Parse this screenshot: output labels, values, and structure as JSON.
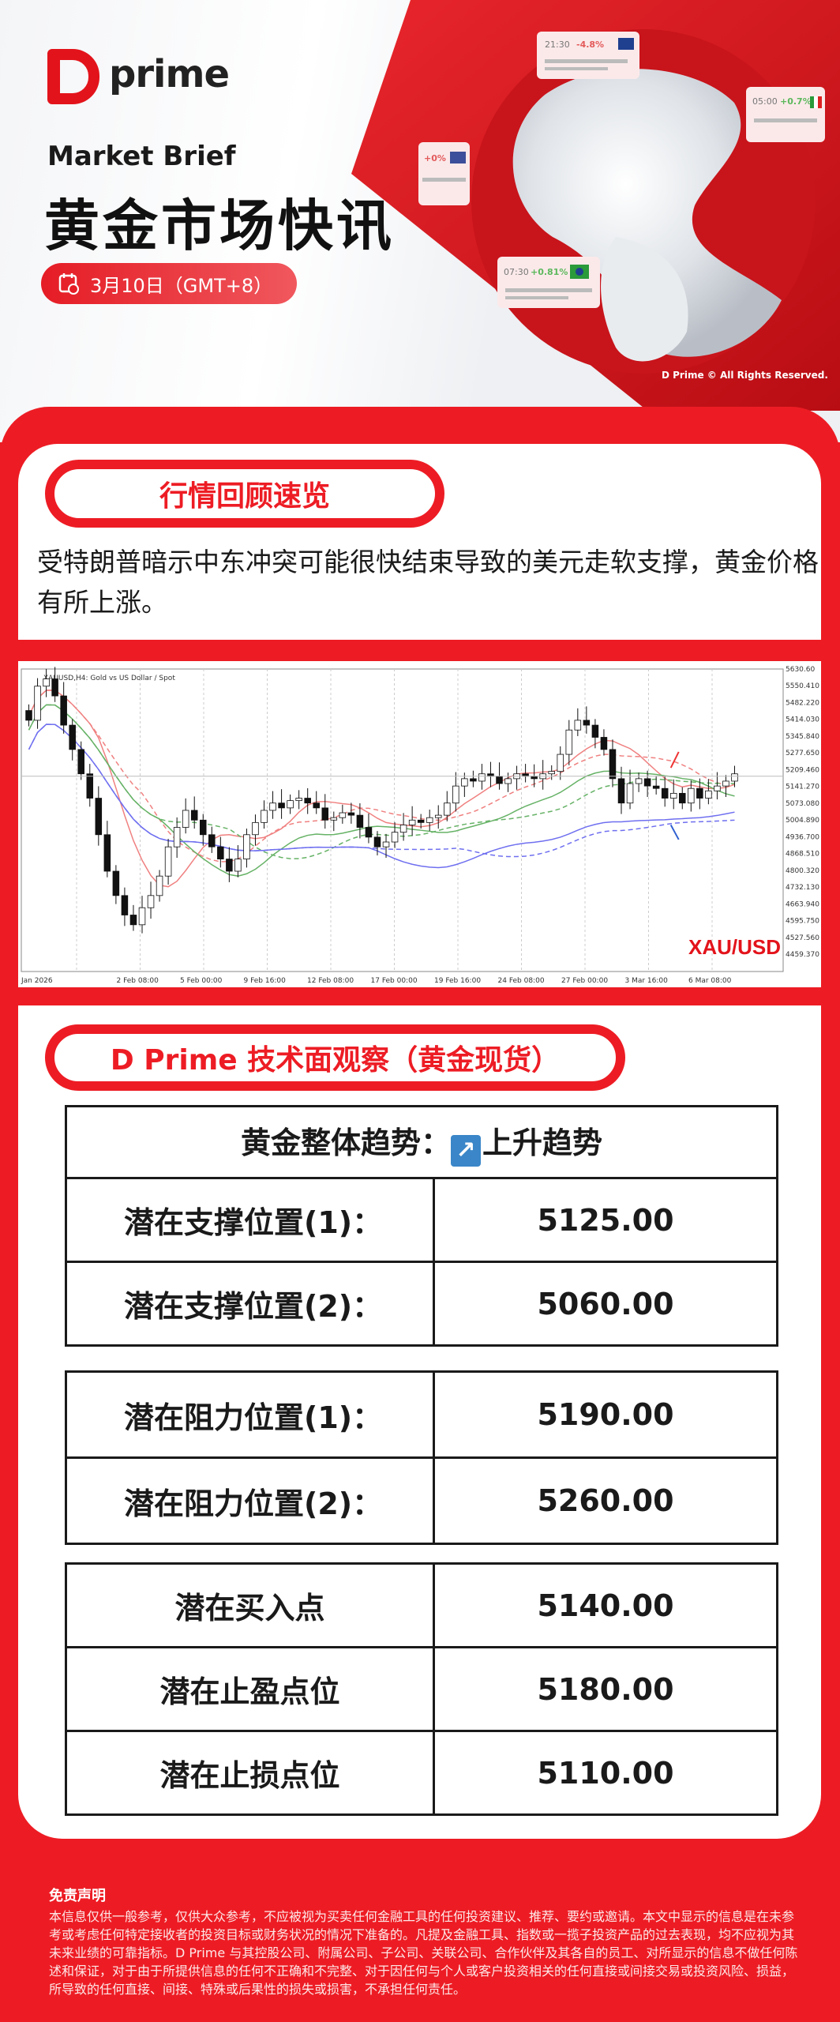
{
  "brand": {
    "logo_text": "prime",
    "copyright": "D Prime © All Rights Reserved."
  },
  "hero": {
    "subtitle": "Market Brief",
    "title": "黄金市场快讯",
    "date": "3月10日（GMT+8）",
    "date_icon": "calendar-clock-icon",
    "cards": [
      {
        "time": "21:30",
        "change": "-4.8%",
        "flag": "uk-flag"
      },
      {
        "time": "05:00",
        "change": "+0.7%",
        "flag": "italy-flag"
      },
      {
        "time": "",
        "change": "+0%",
        "flag": "us-flag"
      },
      {
        "time": "07:30",
        "change": "+0.81%",
        "flag": "brazil-flag"
      }
    ]
  },
  "review": {
    "heading": "行情回顾速览",
    "text": "受特朗普暗示中东冲突可能很快结束导致的美元走软支撑，黄金价格有所上涨。"
  },
  "chart": {
    "symbol_label": "XAUUSD,H4: Gold vs US Dollar / Spot",
    "watermark": "XAU/USD",
    "y_ticks": [
      "5630.60",
      "5550.410",
      "5482.220",
      "5414.030",
      "5345.840",
      "5277.650",
      "5209.460",
      "5141.270",
      "5073.080",
      "5004.890",
      "4936.700",
      "4868.510",
      "4800.320",
      "4732.130",
      "4663.940",
      "4595.750",
      "4527.560",
      "4459.370"
    ],
    "x_ticks": [
      "Jan 2026",
      "2 Feb 08:00",
      "5 Feb 00:00",
      "9 Feb 16:00",
      "12 Feb 08:00",
      "17 Feb 00:00",
      "19 Feb 16:00",
      "24 Feb 08:00",
      "27 Feb 00:00",
      "3 Mar 16:00",
      "6 Mar 08:00"
    ],
    "ylim": [
      4459.37,
      5630.6
    ],
    "closes": [
      5420,
      5560,
      5590,
      5520,
      5400,
      5300,
      5200,
      5100,
      4950,
      4800,
      4700,
      4620,
      4580,
      4650,
      4700,
      4780,
      4900,
      4980,
      5050,
      5010,
      4950,
      4900,
      4850,
      4800,
      4850,
      4950,
      5000,
      5050,
      5080,
      5060,
      5090,
      5100,
      5080,
      5060,
      5010,
      5020,
      5040,
      5030,
      4980,
      4940,
      4900,
      4920,
      4960,
      4990,
      5010,
      5000,
      5020,
      5030,
      5080,
      5150,
      5180,
      5170,
      5200,
      5190,
      5160,
      5180,
      5200,
      5190,
      5180,
      5200,
      5210,
      5280,
      5380,
      5420,
      5400,
      5350,
      5300,
      5180,
      5080,
      5160,
      5180,
      5150,
      5140,
      5100,
      5120,
      5080,
      5140,
      5100,
      5130,
      5150,
      5170,
      5200
    ],
    "ma_colors": [
      "#f08080",
      "#66b266",
      "#6f6ff0"
    ]
  },
  "tech": {
    "heading": "D Prime 技术面观察（黄金现货）",
    "trend_label": "黄金整体趋势：",
    "trend_icon": "arrow-up-right-icon",
    "trend_value": "上升趋势",
    "support": [
      {
        "label": "潜在支撑位置(1)：",
        "value": "5125.00"
      },
      {
        "label": "潜在支撑位置(2)：",
        "value": "5060.00"
      }
    ],
    "resistance": [
      {
        "label": "潜在阻力位置(1)：",
        "value": "5190.00"
      },
      {
        "label": "潜在阻力位置(2)：",
        "value": "5260.00"
      }
    ],
    "trade": [
      {
        "label": "潜在买入点",
        "value": "5140.00"
      },
      {
        "label": "潜在止盈点位",
        "value": "5180.00"
      },
      {
        "label": "潜在止损点位",
        "value": "5110.00"
      }
    ]
  },
  "disclaimer": {
    "title": "免责声明",
    "text": "本信息仅供一般参考，仅供大众参考，不应被视为买卖任何金融工具的任何投资建议、推荐、要约或邀请。本文中显示的信息是在未参考或考虑任何特定接收者的投资目标或财务状况的情况下准备的。凡提及金融工具、指数或一揽子投资产品的过去表现，均不应视为其未来业绩的可靠指标。D Prime 与其控股公司、附属公司、子公司、关联公司、合作伙伴及其各自的员工、对所显示的信息不做任何陈述和保证，对于由于所提供信息的任何不正确和不完整、对于因任何与个人或客户投资相关的任何直接或间接交易或投资风险、损益，所导致的任何直接、间接、特殊或后果性的损失或损害，不承担任何责任。"
  }
}
